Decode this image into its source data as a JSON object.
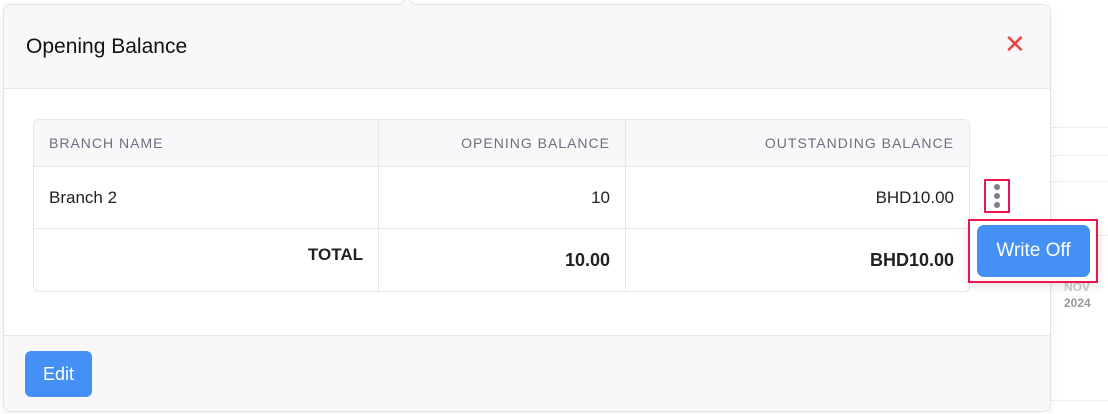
{
  "modal": {
    "title": "Opening Balance",
    "close_icon": "close-x-icon",
    "close_color": "#f2443d"
  },
  "table": {
    "headers": [
      "BRANCH NAME",
      "OPENING BALANCE",
      "OUTSTANDING BALANCE"
    ],
    "rows": [
      {
        "branch": "Branch 2",
        "opening": "10",
        "outstanding": "BHD10.00"
      }
    ],
    "total": {
      "label": "TOTAL",
      "opening": "10.00",
      "outstanding": "BHD10.00"
    }
  },
  "row_menu": {
    "icon": "more-vertical-icon",
    "write_off_label": "Write Off"
  },
  "footer": {
    "edit_label": "Edit"
  },
  "background": {
    "month": "NOV",
    "year": "2024"
  },
  "colors": {
    "primary": "#4590f7",
    "highlight": "#e8174f"
  }
}
